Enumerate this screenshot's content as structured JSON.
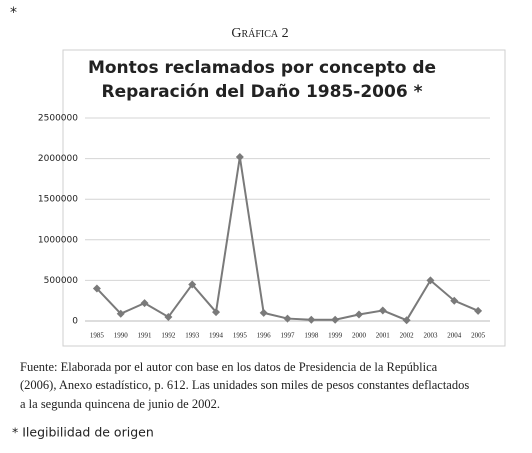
{
  "page_marker": "*",
  "caption": "Gráfica 2",
  "chart_data": {
    "type": "line",
    "title": [
      "Montos reclamados por concepto de",
      "Reparación del Daño 1985-2006 *"
    ],
    "categories": [
      "1985",
      "1990",
      "1991",
      "1992",
      "1993",
      "1994",
      "1995",
      "1996",
      "1997",
      "1998",
      "1999",
      "2000",
      "2001",
      "2002",
      "2003",
      "2004",
      "2005"
    ],
    "series": [
      {
        "color": "#7a7a7a",
        "values": [
          400000,
          90000,
          220000,
          50000,
          450000,
          110000,
          2020000,
          100000,
          30000,
          15000,
          15000,
          80000,
          130000,
          10000,
          500000,
          250000,
          125000
        ]
      }
    ],
    "ylim": [
      0,
      2500000
    ],
    "yticks": [
      0,
      500000,
      1000000,
      1500000,
      2000000,
      2500000
    ],
    "grid": true
  },
  "source": [
    "Fuente: Elaborada por el autor con base en los datos de Presidencia de la República",
    "(2006), Anexo estadístico, p. 612. Las unidades son miles de pesos constantes deflactados",
    "a la segunda quincena de junio de 2002."
  ],
  "footnote": "* Ilegibilidad de origen"
}
